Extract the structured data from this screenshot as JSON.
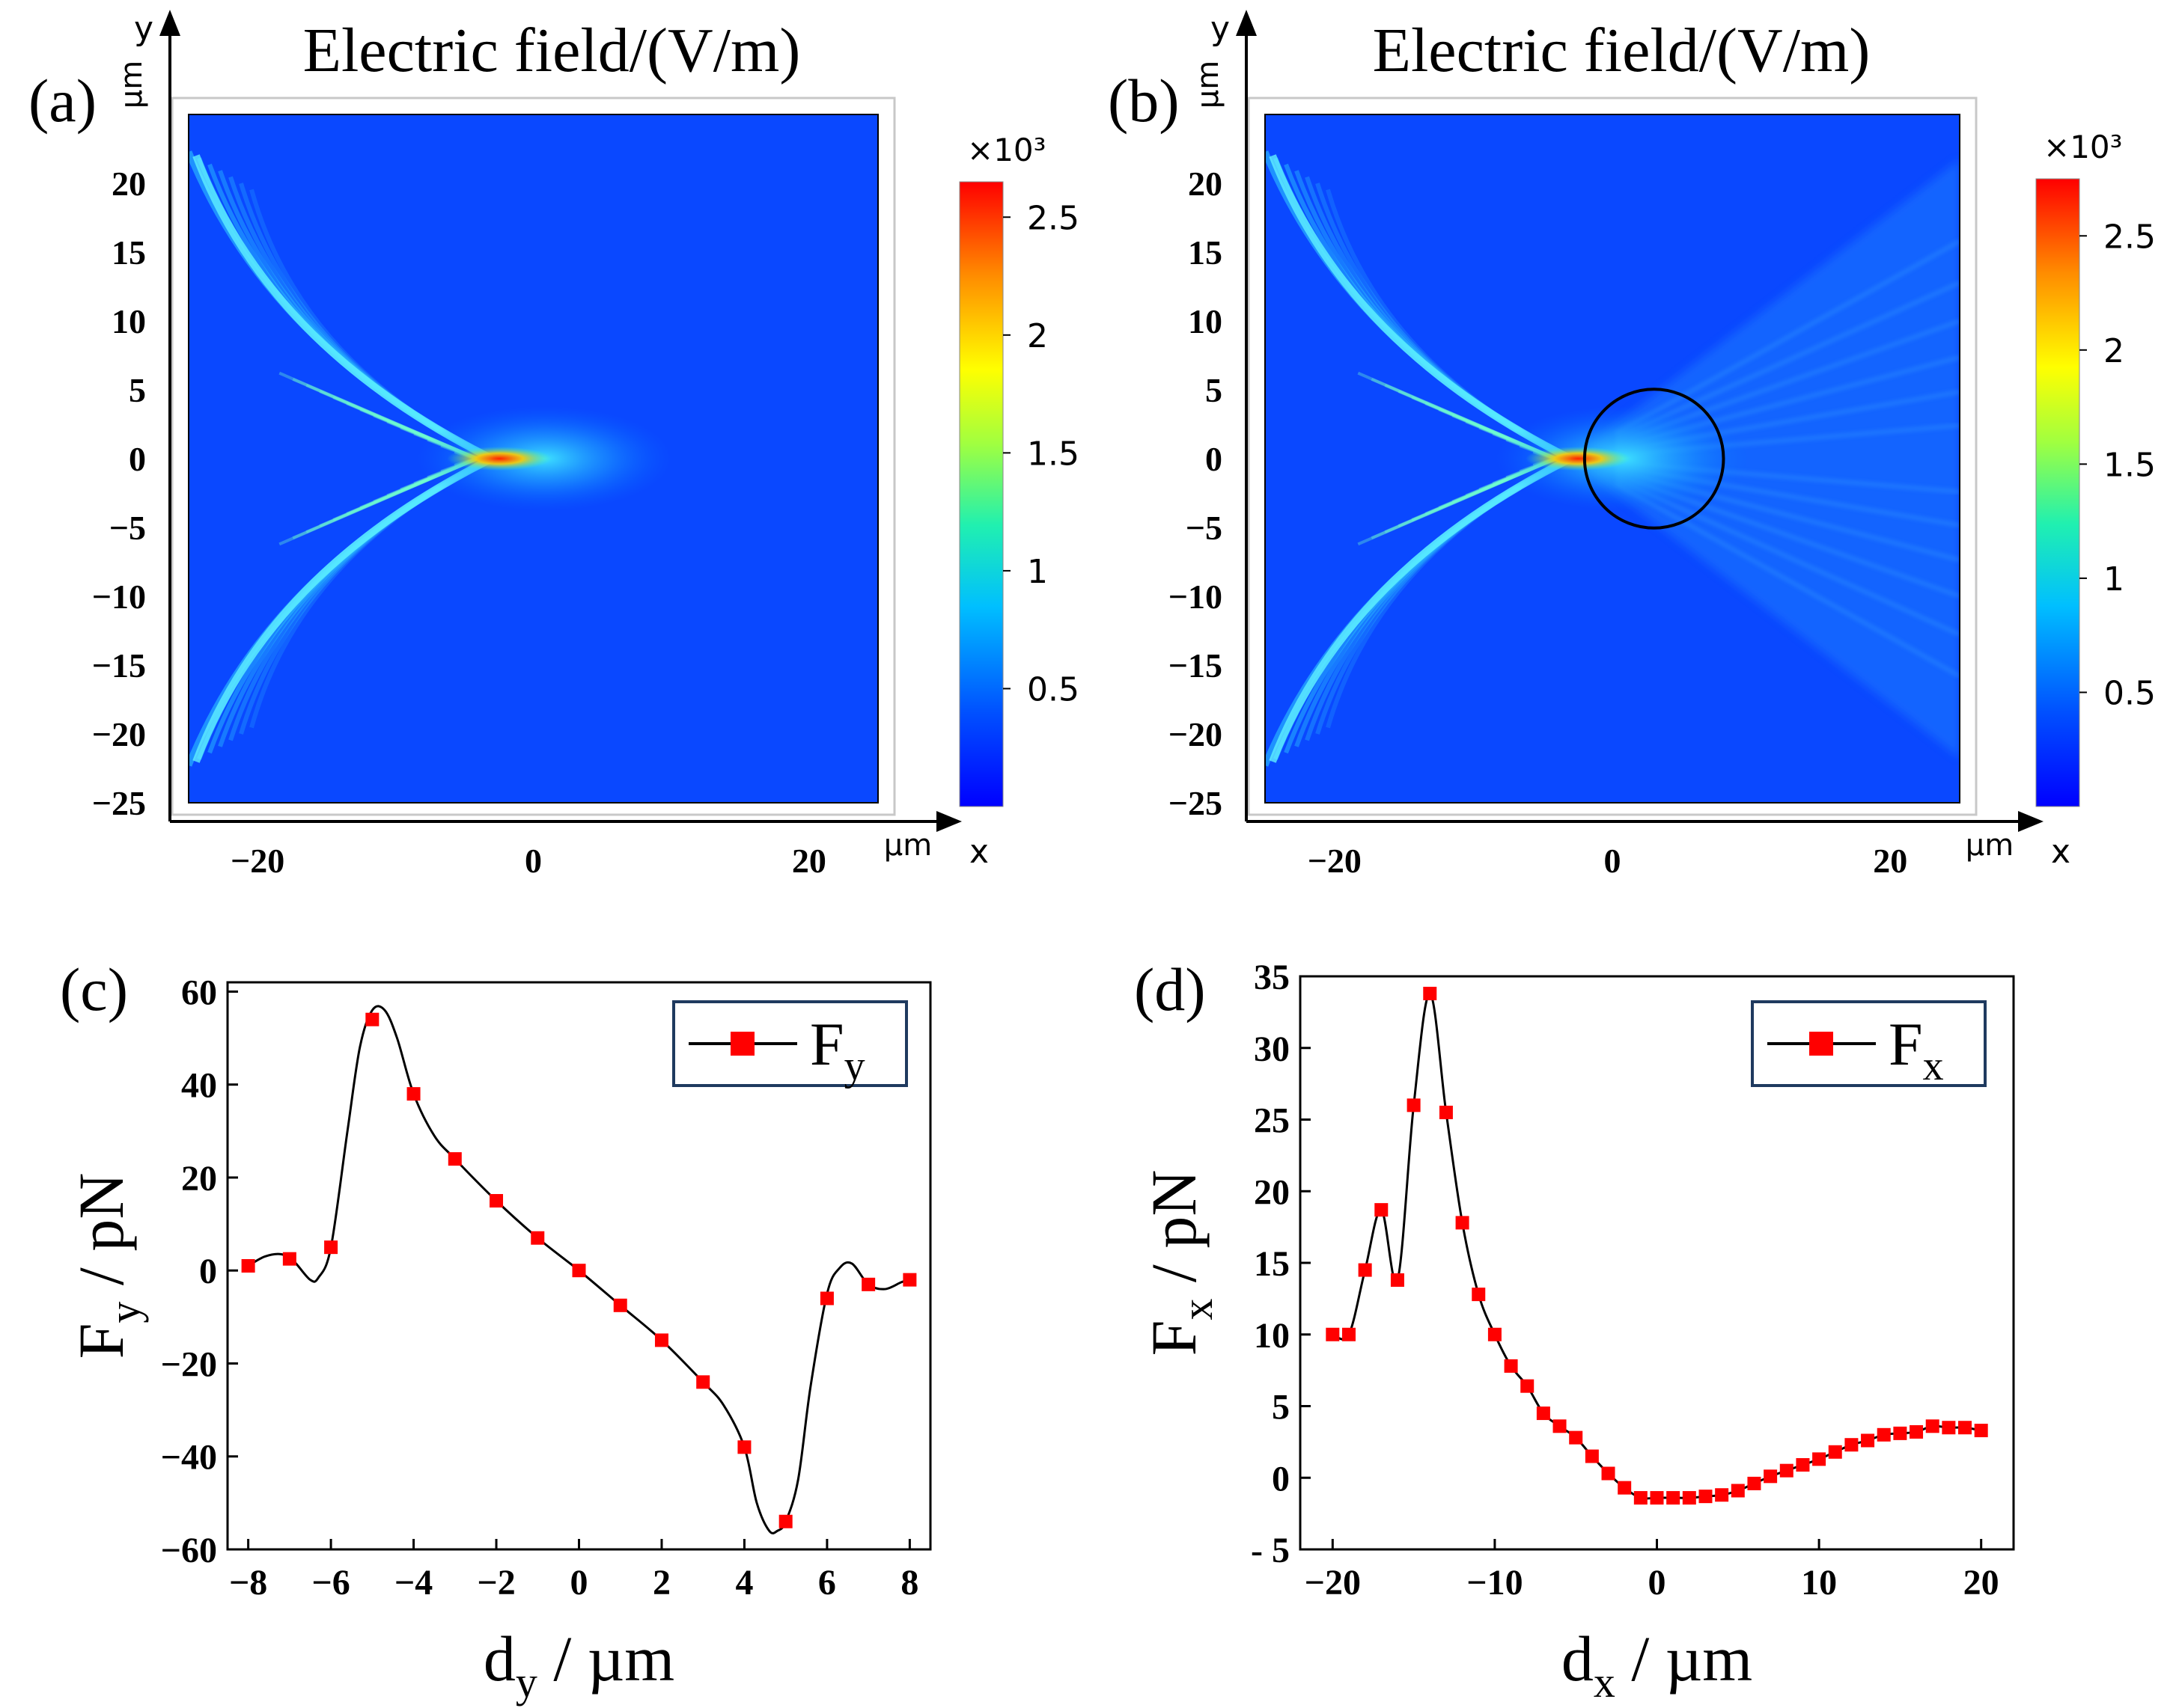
{
  "figure": {
    "panels": [
      "(a)",
      "(b)",
      "(c)",
      "(d)"
    ]
  },
  "chart_data": [
    {
      "id": "a",
      "type": "heatmap",
      "panel_label": "(a)",
      "title": "Electric field/(V/m)",
      "x_unit": "µm",
      "y_unit": "µm",
      "xlabel": "x",
      "ylabel": "y",
      "xlim": [
        -25,
        25
      ],
      "ylim": [
        -25,
        25
      ],
      "xticks": [
        -20,
        0,
        20
      ],
      "xtick_labels": [
        "−20",
        "0",
        "20"
      ],
      "yticks": [
        20,
        15,
        10,
        5,
        0,
        -5,
        -10,
        -15,
        -20,
        -25
      ],
      "ytick_labels": [
        "20",
        "15",
        "10",
        "5",
        "0",
        "−5",
        "−10",
        "−15",
        "−20",
        "−25"
      ],
      "colorbar": {
        "exponent_label": "×10³",
        "range": [
          0,
          2.65
        ],
        "ticks": [
          0.5,
          1,
          1.5,
          2,
          2.5
        ],
        "tick_labels": [
          "0.5",
          "1",
          "1.5",
          "2",
          "2.5"
        ],
        "colormap": [
          "#0000ff",
          "#0050ff",
          "#00bfff",
          "#20f0b0",
          "#a0ff40",
          "#ffff00",
          "#ff8c00",
          "#ff0000"
        ]
      },
      "features": {
        "focus_center": [
          -3,
          0
        ],
        "peak_value": 2.6,
        "background_value": 0.2
      },
      "particle": null
    },
    {
      "id": "b",
      "type": "heatmap",
      "panel_label": "(b)",
      "title": "Electric field/(V/m)",
      "x_unit": "µm",
      "y_unit": "µm",
      "xlabel": "x",
      "ylabel": "y",
      "xlim": [
        -25,
        25
      ],
      "ylim": [
        -25,
        25
      ],
      "xticks": [
        -20,
        0,
        20
      ],
      "xtick_labels": [
        "−20",
        "0",
        "20"
      ],
      "yticks": [
        20,
        15,
        10,
        5,
        0,
        -5,
        -10,
        -15,
        -20,
        -25
      ],
      "ytick_labels": [
        "20",
        "15",
        "10",
        "5",
        "0",
        "−5",
        "−10",
        "−15",
        "−20",
        "−25"
      ],
      "colorbar": {
        "exponent_label": "×10³",
        "range": [
          0,
          2.75
        ],
        "ticks": [
          0.5,
          1,
          1.5,
          2,
          2.5
        ],
        "tick_labels": [
          "0.5",
          "1",
          "1.5",
          "2",
          "2.5"
        ],
        "colormap": [
          "#0000ff",
          "#0050ff",
          "#00bfff",
          "#20f0b0",
          "#a0ff40",
          "#ffff00",
          "#ff8c00",
          "#ff0000"
        ]
      },
      "features": {
        "focus_center": [
          -3,
          0
        ],
        "peak_value": 2.7,
        "background_value": 0.3
      },
      "particle": {
        "center": [
          3,
          0
        ],
        "radius": 5
      }
    },
    {
      "id": "c",
      "type": "line",
      "panel_label": "(c)",
      "xlabel_main": "d",
      "xlabel_sub": "y",
      "xlabel_rest": " / µm",
      "ylabel_main": "F",
      "ylabel_sub": "y",
      "ylabel_rest": " / pN",
      "xlim": [
        -8.5,
        8.5
      ],
      "ylim": [
        -60,
        62
      ],
      "xticks": [
        -8,
        -6,
        -4,
        -2,
        0,
        2,
        4,
        6,
        8
      ],
      "xtick_labels": [
        "−8",
        "−6",
        "−4",
        "−2",
        "0",
        "2",
        "4",
        "6",
        "8"
      ],
      "yticks": [
        60,
        40,
        20,
        0,
        -20,
        -40,
        -60
      ],
      "ytick_labels": [
        "60",
        "40",
        "20",
        "0",
        "−20",
        "−40",
        "−60"
      ],
      "legend": {
        "main": "F",
        "sub": "y",
        "position": "top-right"
      },
      "series": [
        {
          "name": "Fy",
          "x": [
            -8,
            -7,
            -6,
            -5,
            -4,
            -3,
            -2,
            -1,
            0,
            1,
            2,
            3,
            4,
            5,
            6,
            7,
            8
          ],
          "y": [
            1,
            2.5,
            5,
            54,
            38,
            24,
            15,
            7,
            0,
            -7.5,
            -15,
            -24,
            -38,
            -54,
            -6,
            -3,
            -2
          ]
        }
      ],
      "curve": [
        [
          -8,
          1
        ],
        [
          -7.6,
          3
        ],
        [
          -7.2,
          3.5
        ],
        [
          -6.9,
          2
        ],
        [
          -6.5,
          -2
        ],
        [
          -6.3,
          -1.5
        ],
        [
          -6,
          5
        ],
        [
          -5.6,
          30
        ],
        [
          -5.3,
          48
        ],
        [
          -5.0,
          56
        ],
        [
          -4.7,
          56
        ],
        [
          -4.4,
          50
        ],
        [
          -4.0,
          38
        ],
        [
          -3.5,
          29
        ],
        [
          -3,
          24
        ],
        [
          -2,
          15
        ],
        [
          -1,
          7
        ],
        [
          0,
          0
        ],
        [
          1,
          -7.5
        ],
        [
          2,
          -15
        ],
        [
          3,
          -24
        ],
        [
          3.5,
          -29
        ],
        [
          4,
          -38
        ],
        [
          4.3,
          -50
        ],
        [
          4.6,
          -56
        ],
        [
          4.8,
          -56
        ],
        [
          5.0,
          -54
        ],
        [
          5.3,
          -45
        ],
        [
          5.6,
          -25
        ],
        [
          6,
          -5
        ],
        [
          6.3,
          0.5
        ],
        [
          6.6,
          1.5
        ],
        [
          7,
          -3
        ],
        [
          7.4,
          -4
        ],
        [
          7.8,
          -2.5
        ],
        [
          8,
          -2
        ]
      ]
    },
    {
      "id": "d",
      "type": "line",
      "panel_label": "(d)",
      "xlabel_main": "d",
      "xlabel_sub": "x",
      "xlabel_rest": " / µm",
      "ylabel_main": "F",
      "ylabel_sub": "x",
      "ylabel_rest": " / pN",
      "xlim": [
        -22,
        22
      ],
      "ylim": [
        -5,
        35
      ],
      "xticks": [
        -20,
        -10,
        0,
        10,
        20
      ],
      "xtick_labels": [
        "−20",
        "−10",
        "0",
        "10",
        "20"
      ],
      "yticks": [
        35,
        30,
        25,
        20,
        15,
        10,
        5,
        0,
        -5
      ],
      "ytick_labels": [
        "35",
        "30",
        "25",
        "20",
        "15",
        "10",
        "5",
        "0",
        "- 5"
      ],
      "legend": {
        "main": "F",
        "sub": "x",
        "position": "top-right"
      },
      "series": [
        {
          "name": "Fx",
          "x": [
            -20,
            -19,
            -18,
            -17,
            -16,
            -15,
            -14,
            -13,
            -12,
            -11,
            -10,
            -9,
            -8,
            -7,
            -6,
            -5,
            -4,
            -3,
            -2,
            -1,
            0,
            1,
            2,
            3,
            4,
            5,
            6,
            7,
            8,
            9,
            10,
            11,
            12,
            13,
            14,
            15,
            16,
            17,
            18,
            19,
            20
          ],
          "y": [
            10,
            10,
            14.5,
            18.7,
            13.8,
            26,
            33.8,
            25.5,
            17.8,
            12.8,
            10,
            7.8,
            6.4,
            4.5,
            3.6,
            2.8,
            1.5,
            0.3,
            -0.7,
            -1.4,
            -1.4,
            -1.4,
            -1.4,
            -1.3,
            -1.2,
            -0.9,
            -0.4,
            0.1,
            0.5,
            0.9,
            1.3,
            1.8,
            2.3,
            2.6,
            3.0,
            3.1,
            3.2,
            3.6,
            3.5,
            3.5,
            3.3
          ]
        }
      ]
    }
  ]
}
